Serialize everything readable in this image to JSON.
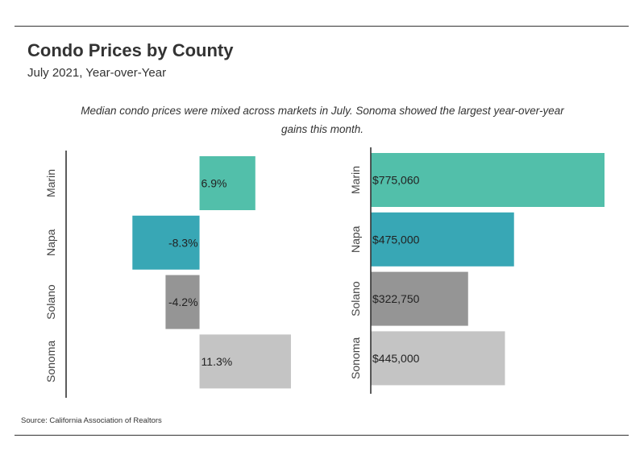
{
  "header": {
    "title": "Condo Prices by County",
    "subtitle": "July 2021, Year-over-Year",
    "description": "Median condo prices were mixed across markets in July. Sonoma showed the largest year-over-year gains this month."
  },
  "footer": {
    "source": "Source:  California Association of Realtors"
  },
  "chart_data": [
    {
      "type": "bar",
      "orientation": "horizontal",
      "title": "",
      "categories": [
        "Marin",
        "Napa",
        "Solano",
        "Sonoma"
      ],
      "values": [
        6.9,
        -8.3,
        -4.2,
        11.3
      ],
      "value_labels": [
        "6.9%",
        "-8.3%",
        "-4.2%",
        "11.3%"
      ],
      "unit": "% year-over-year change",
      "xlim": [
        -16.5,
        13
      ],
      "colors": [
        "#52bfaa",
        "#38a7b5",
        "#959595",
        "#c4c4c4"
      ]
    },
    {
      "type": "bar",
      "orientation": "horizontal",
      "title": "",
      "categories": [
        "Marin",
        "Napa",
        "Solano",
        "Sonoma"
      ],
      "values": [
        775060,
        475000,
        322750,
        445000
      ],
      "value_labels": [
        "$775,060",
        "$475,000",
        "$322,750",
        "$445,000"
      ],
      "unit": "USD median price",
      "xlim": [
        0,
        775060
      ],
      "colors": [
        "#52bfaa",
        "#38a7b5",
        "#959595",
        "#c4c4c4"
      ]
    }
  ]
}
